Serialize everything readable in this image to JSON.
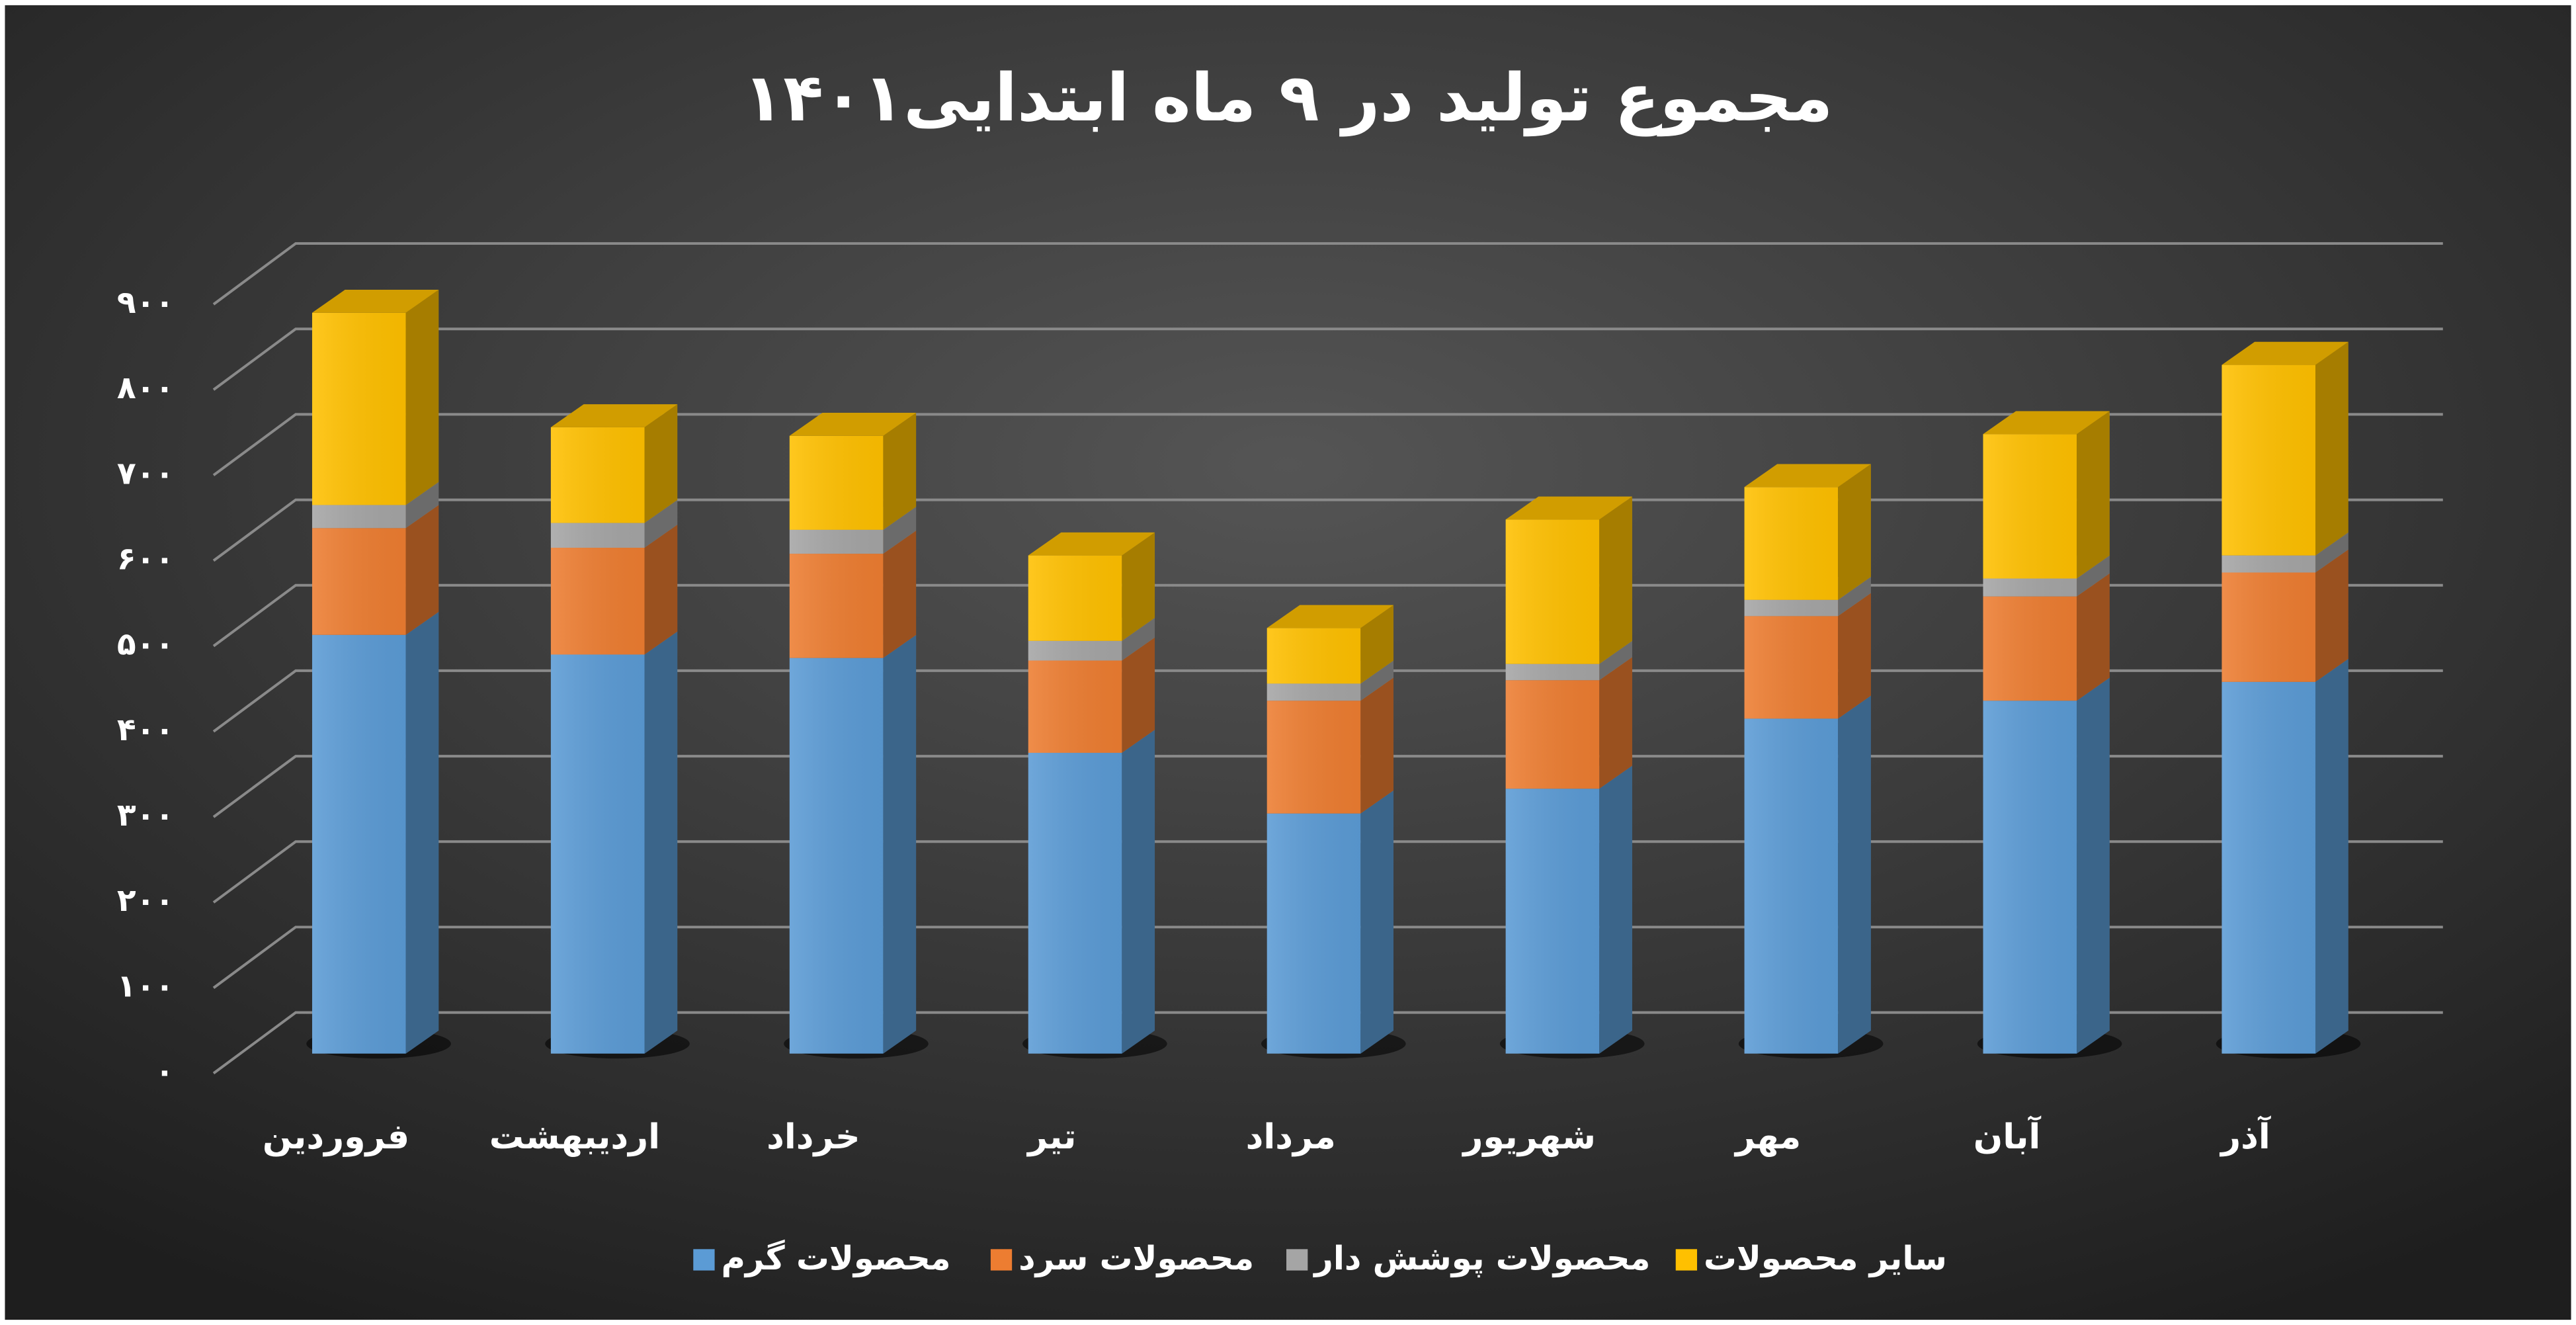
{
  "chart_data": {
    "type": "bar3d_stacked",
    "title": "مجموع تولید در ۹ ماه ابتدایی۱۴۰۱",
    "categories": [
      "فروردین",
      "اردیبهشت",
      "خرداد",
      "تیر",
      "مرداد",
      "شهریور",
      "مهر",
      "آبان",
      "آذر"
    ],
    "series": [
      {
        "name": "محصولات گرم",
        "color": "#5b9bd5",
        "values": [
          490,
          467,
          463,
          352,
          281,
          310,
          392,
          413,
          435
        ]
      },
      {
        "name": "محصولات سرد",
        "color": "#ed7d31",
        "values": [
          125,
          125,
          122,
          108,
          132,
          127,
          120,
          122,
          128
        ]
      },
      {
        "name": "محصولات پوشش دار",
        "color": "#a5a5a5",
        "values": [
          27,
          29,
          28,
          23,
          20,
          19,
          19,
          21,
          20
        ]
      },
      {
        "name": "سایر محصولات",
        "color": "#ffc000",
        "values": [
          225,
          112,
          110,
          100,
          65,
          169,
          132,
          169,
          223
        ]
      }
    ],
    "ylim": [
      0,
      900
    ],
    "yticks": [
      {
        "value": 0,
        "label": "۰"
      },
      {
        "value": 100,
        "label": "۱۰۰"
      },
      {
        "value": 200,
        "label": "۲۰۰"
      },
      {
        "value": 300,
        "label": "۳۰۰"
      },
      {
        "value": 400,
        "label": "۴۰۰"
      },
      {
        "value": 500,
        "label": "۵۰۰"
      },
      {
        "value": 600,
        "label": "۶۰۰"
      },
      {
        "value": 700,
        "label": "۷۰۰"
      },
      {
        "value": 800,
        "label": "۸۰۰"
      },
      {
        "value": 900,
        "label": "۹۰۰"
      }
    ],
    "grid": true,
    "legend": "bottom"
  }
}
